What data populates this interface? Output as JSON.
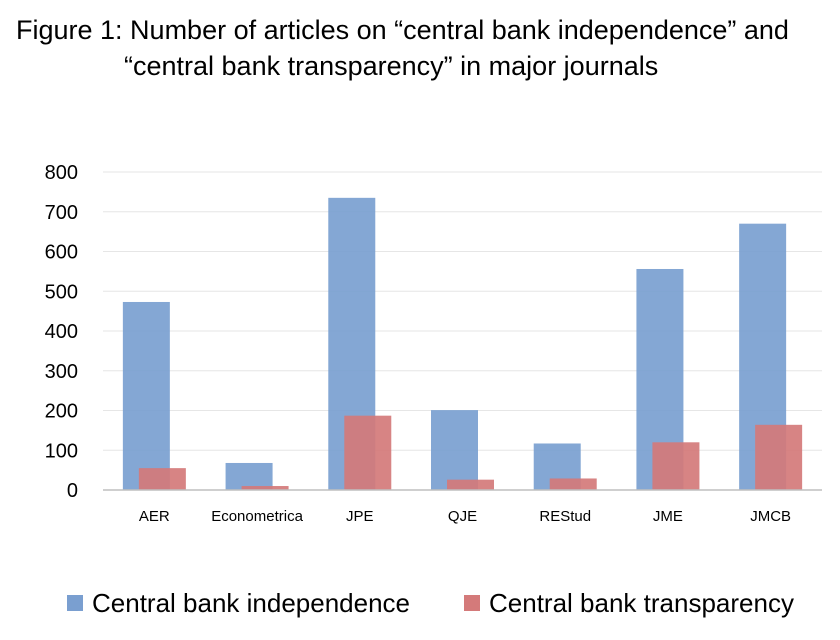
{
  "title": {
    "line1": "Figure 1:  Number of articles on “central bank independence” and",
    "line2": "“central bank transparency” in major journals"
  },
  "chart_data": {
    "type": "bar",
    "categories": [
      "AER",
      "Econometrica",
      "JPE",
      "QJE",
      "REStud",
      "JME",
      "JMCB"
    ],
    "series": [
      {
        "name": "Central bank independence",
        "color": "#7a9fd0",
        "values": [
          473,
          68,
          735,
          201,
          117,
          556,
          670
        ]
      },
      {
        "name": "Central bank transparency",
        "color": "#d47a7a",
        "values": [
          55,
          10,
          187,
          26,
          29,
          120,
          164
        ]
      }
    ],
    "ylim": [
      0,
      800
    ],
    "yticks": [
      0,
      100,
      200,
      300,
      400,
      500,
      600,
      700,
      800
    ],
    "grid": true,
    "legend_position": "bottom",
    "xlabel": "",
    "ylabel": ""
  }
}
